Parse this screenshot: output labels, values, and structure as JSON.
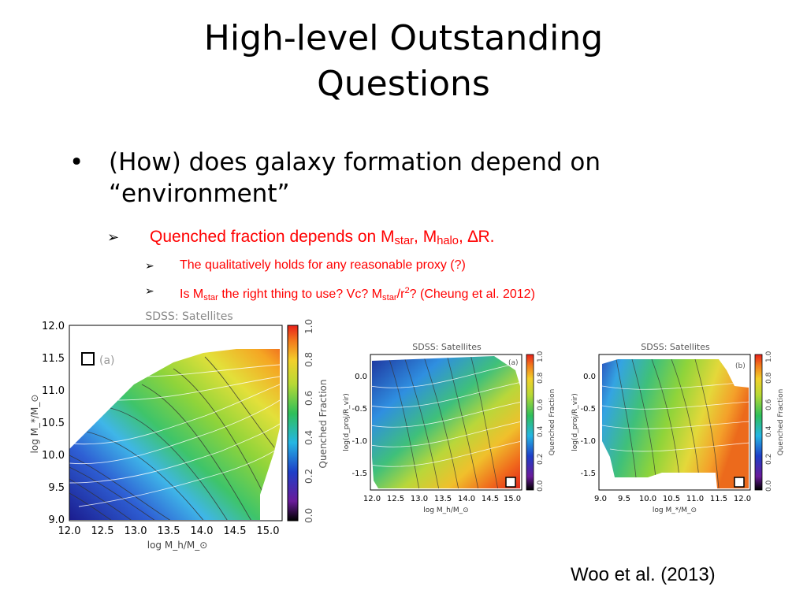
{
  "slide": {
    "title_line1": "High-level Outstanding",
    "title_line2": "Questions",
    "bullet1": {
      "marker": "•",
      "text_line1": "(How) does galaxy formation depend on",
      "text_line2": "“environment”"
    },
    "bullet2": {
      "marker": "➢",
      "prefix": "Quenched fraction depends on M",
      "sub1": "star",
      "mid1": ", M",
      "sub2": "halo",
      "mid2": ", ",
      "delta": "∆",
      "suffix": "R."
    },
    "bullet3": {
      "marker": "➢",
      "text": "The qualitatively holds for any reasonable proxy (?)"
    },
    "bullet4": {
      "marker": "➢",
      "p1": "Is M",
      "s1": "star",
      "p2": " the right thing to use?  Vc?  M",
      "s2": "star",
      "p3": "/r",
      "sup": "2",
      "p4": "?  (Cheung et al. 2012)"
    },
    "citation": "Woo et al. (2013)"
  },
  "chart_data": [
    {
      "type": "heatmap",
      "title": "SDSS: Satellites",
      "panel_label": "(a)",
      "xlabel": "log M_h/M_⊙",
      "ylabel": "log M_*/M_⊙",
      "xticks": [
        "12.0",
        "12.5",
        "13.0",
        "13.5",
        "14.0",
        "14.5",
        "15.0"
      ],
      "yticks": [
        "9.0",
        "9.5",
        "10.0",
        "10.5",
        "11.0",
        "11.5",
        "12.0"
      ],
      "xlim": [
        12.0,
        15.2
      ],
      "ylim": [
        9.0,
        12.0
      ],
      "colorbar_label": "Quenched Fraction",
      "colorbar_ticks": [
        "0.0",
        "0.2",
        "0.4",
        "0.6",
        "0.8",
        "1.0"
      ]
    },
    {
      "type": "heatmap",
      "title": "SDSS: Satellites",
      "panel_label": "(a)",
      "xlabel": "log M_h/M_⊙",
      "ylabel": "log(d_proj/R_vir)",
      "xticks": [
        "12.0",
        "12.5",
        "13.0",
        "13.5",
        "14.0",
        "14.5",
        "15.0"
      ],
      "yticks": [
        "-1.5",
        "-1.0",
        "-0.5",
        "0.0"
      ],
      "colorbar_label": "Quenched Fraction",
      "colorbar_ticks": [
        "0.0",
        "0.2",
        "0.4",
        "0.6",
        "0.8",
        "1.0"
      ]
    },
    {
      "type": "heatmap",
      "title": "SDSS: Satellites",
      "panel_label": "(b)",
      "xlabel": "log M_*/M_⊙",
      "ylabel": "log(d_proj/R_vir)",
      "xticks": [
        "9.0",
        "9.5",
        "10.0",
        "10.5",
        "11.0",
        "11.5",
        "12.0"
      ],
      "yticks": [
        "-1.5",
        "-1.0",
        "-0.5",
        "0.0"
      ],
      "colorbar_label": "Quenched Fraction",
      "colorbar_ticks": [
        "0.0",
        "0.2",
        "0.4",
        "0.6",
        "0.8",
        "1.0"
      ]
    }
  ],
  "colors": {
    "bullet_red": "#ff0000",
    "text": "#000000"
  }
}
